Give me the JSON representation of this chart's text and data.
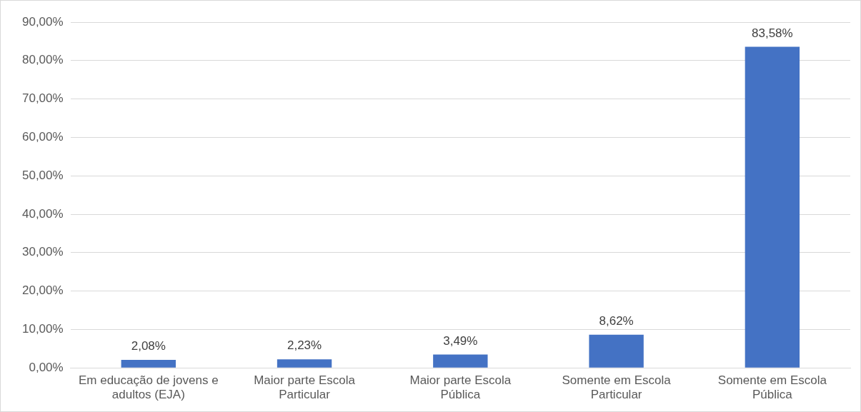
{
  "chart_data": {
    "type": "bar",
    "categories": [
      "Em educação de jovens e adultos (EJA)",
      "Maior parte Escola Particular",
      "Maior parte Escola Pública",
      "Somente em Escola Particular",
      "Somente em Escola Pública"
    ],
    "values": [
      2.08,
      2.23,
      3.49,
      8.62,
      83.58
    ],
    "color": "#4472c4",
    "value_labels": [
      "2,08%",
      "2,23%",
      "3,49%",
      "8,62%",
      "83,58%"
    ],
    "ylim": [
      0,
      90
    ],
    "yticks": [
      {
        "value": 0,
        "label": "0,00%"
      },
      {
        "value": 10,
        "label": "10,00%"
      },
      {
        "value": 20,
        "label": "20,00%"
      },
      {
        "value": 30,
        "label": "30,00%"
      },
      {
        "value": 40,
        "label": "40,00%"
      },
      {
        "value": 50,
        "label": "50,00%"
      },
      {
        "value": 60,
        "label": "60,00%"
      },
      {
        "value": 70,
        "label": "70,00%"
      },
      {
        "value": 80,
        "label": "80,00%"
      },
      {
        "value": 90,
        "label": "90,00%"
      }
    ],
    "grid": "y",
    "legend": false
  }
}
